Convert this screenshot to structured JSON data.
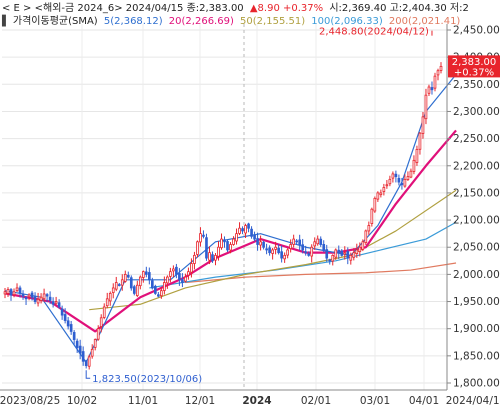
{
  "header": {
    "line1": {
      "prefix": "< E > <해외-금 2024_6> 2024/04/15 종:2,383.00",
      "change": "▲8.90 +0.37%",
      "rest": "시:2,369.40 고:2,404.30 저:2"
    },
    "line2": {
      "title": "가격이동평균(SMA)",
      "ma": [
        {
          "label": "5(2,368.12)",
          "color": "#2f6fd0"
        },
        {
          "label": "20(2,266.69)",
          "color": "#e0107a"
        },
        {
          "label": "50(2,155.51)",
          "color": "#b0a040"
        },
        {
          "label": "100(2,096.33)",
          "color": "#3b9bd8"
        },
        {
          "label": "200(2,021.41)",
          "color": "#e07a60"
        }
      ]
    }
  },
  "colors": {
    "up": "#e8242c",
    "down": "#2f5fd0",
    "ma5": "#2f6fd0",
    "ma20": "#e0107a",
    "ma50": "#b0a040",
    "ma100": "#3b9bd8",
    "ma200": "#e07a60",
    "price_tag": "#e8242c"
  },
  "price_tag": {
    "price": "2,383.00",
    "change": "+0.37%"
  },
  "chart_data": {
    "type": "candlestick",
    "y_axis": {
      "ylim": [
        1800,
        2480
      ],
      "ticks": [
        "2,450.00",
        "2,400.00",
        "2,350.00",
        "2,300.00",
        "2,250.00",
        "2,200.00",
        "2,150.00",
        "2,100.00",
        "2,050.00",
        "2,000.00",
        "1,950.00",
        "1,900.00",
        "1,850.00",
        "1,800.00"
      ]
    },
    "x_axis": {
      "labels": [
        {
          "text": "2023/08/25",
          "bold": false
        },
        {
          "text": "10/02",
          "bold": false
        },
        {
          "text": "11/01",
          "bold": false
        },
        {
          "text": "12/01",
          "bold": false
        },
        {
          "text": "2024",
          "bold": true
        },
        {
          "text": "02/01",
          "bold": false
        },
        {
          "text": "03/01",
          "bold": false
        },
        {
          "text": "04/01",
          "bold": false
        },
        {
          "text": "2024/04/15",
          "bold": false
        }
      ]
    },
    "annotations": {
      "high": {
        "text": "2,448.80(2024/04/12)",
        "value": 2448.8
      },
      "low": {
        "text": "1,823.50(2023/10/06)",
        "value": 1823.5
      }
    },
    "closes": [
      1968,
      1972,
      1962,
      1968,
      1975,
      1966,
      1960,
      1955,
      1962,
      1958,
      1950,
      1954,
      1958,
      1964,
      1960,
      1952,
      1945,
      1950,
      1940,
      1925,
      1915,
      1905,
      1895,
      1880,
      1865,
      1855,
      1840,
      1832,
      1848,
      1862,
      1880,
      1900,
      1920,
      1940,
      1955,
      1965,
      1975,
      1985,
      1980,
      1990,
      2000,
      1995,
      1975,
      1965,
      1980,
      1995,
      2005,
      2000,
      1990,
      1975,
      1965,
      1960,
      1970,
      1985,
      1995,
      2005,
      2010,
      2000,
      1990,
      1985,
      1995,
      2005,
      2020,
      2035,
      2060,
      2075,
      2070,
      2030,
      2040,
      2025,
      2035,
      2050,
      2065,
      2060,
      2045,
      2055,
      2065,
      2075,
      2085,
      2080,
      2090,
      2085,
      2070,
      2065,
      2055,
      2060,
      2050,
      2045,
      2040,
      2045,
      2050,
      2040,
      2030,
      2035,
      2045,
      2055,
      2065,
      2060,
      2055,
      2045,
      2040,
      2035,
      2050,
      2060,
      2065,
      2055,
      2045,
      2030,
      2025,
      2035,
      2045,
      2040,
      2035,
      2040,
      2030,
      2035,
      2040,
      2045,
      2050,
      2060,
      2080,
      2090,
      2120,
      2140,
      2150,
      2150,
      2160,
      2165,
      2175,
      2185,
      2180,
      2170,
      2165,
      2175,
      2180,
      2190,
      2210,
      2230,
      2260,
      2290,
      2330,
      2345,
      2340,
      2365,
      2375,
      2383
    ],
    "ma": {
      "ma5": {
        "x": [
          0,
          12,
          27,
          40,
          55,
          70,
          85,
          100,
          115,
          124,
          132,
          140,
          150
        ],
        "y": [
          1970,
          1958,
          1838,
          1990,
          1990,
          2060,
          2075,
          2050,
          2035,
          2090,
          2170,
          2300,
          2368
        ]
      },
      "ma20": {
        "x": [
          0,
          15,
          30,
          45,
          60,
          70,
          85,
          100,
          110,
          120,
          130,
          140,
          150
        ],
        "y": [
          1965,
          1950,
          1895,
          1958,
          1995,
          2030,
          2065,
          2040,
          2040,
          2050,
          2130,
          2200,
          2265
        ]
      },
      "ma50": {
        "x": [
          28,
          45,
          60,
          80,
          100,
          115,
          130,
          150
        ],
        "y": [
          1935,
          1945,
          1975,
          2000,
          2018,
          2035,
          2080,
          2155
        ]
      },
      "ma100": {
        "x": [
          48,
          70,
          90,
          110,
          125,
          140,
          150
        ],
        "y": [
          1975,
          1995,
          2008,
          2025,
          2045,
          2065,
          2096
        ]
      },
      "ma200": {
        "x": [
          60,
          80,
          100,
          120,
          135,
          150
        ],
        "y": [
          1985,
          1995,
          2000,
          2003,
          2008,
          2021
        ]
      }
    }
  }
}
